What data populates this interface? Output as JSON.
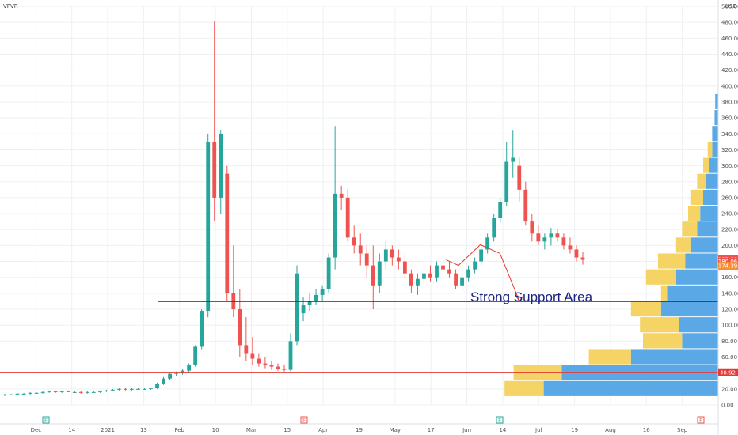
{
  "chart_data": {
    "type": "candlestick",
    "symbol": "VPVR",
    "currency": "USD",
    "y_range": [
      0,
      500
    ],
    "grid": true,
    "y_ticks": [
      0,
      20,
      40,
      60,
      80,
      100,
      120,
      140,
      160,
      180,
      200,
      220,
      240,
      260,
      280,
      300,
      320,
      340,
      360,
      380,
      400,
      420,
      440,
      460,
      480,
      500
    ],
    "y_tick_labels": [
      "0.00",
      "20.00",
      "40.00",
      "60.00",
      "80.00",
      "100.00",
      "120.00",
      "140.00",
      "160.00",
      "180.00",
      "200.00",
      "220.00",
      "240.00",
      "260.00",
      "280.00",
      "300.00",
      "320.00",
      "340.00",
      "360.00",
      "380.00",
      "400.00",
      "420.00",
      "440.00",
      "460.00",
      "480.00",
      "500.00"
    ],
    "x_ticks": [
      "Dec",
      "14",
      "2021",
      "13",
      "Feb",
      "10",
      "Mar",
      "15",
      "Apr",
      "19",
      "May",
      "17",
      "Jun",
      "14",
      "Jul",
      "19",
      "Aug",
      "16",
      "Sep"
    ],
    "price_labels": [
      {
        "text": "182.88",
        "value": 182.88,
        "color": "#ef5350"
      },
      {
        "text": "180.06",
        "value": 180.06,
        "color": "#ef5350"
      },
      {
        "text": "174.39",
        "value": 174.39,
        "color": "#fd8c2c"
      },
      {
        "text": "40.92",
        "value": 40.92,
        "color": "#e53935"
      }
    ],
    "support_line": {
      "value": 130,
      "label": "Strong Support Area",
      "color": "#1a237e"
    },
    "support_line_2": {
      "value": 40.92,
      "color": "#e53935"
    },
    "projection": {
      "color": "#e53935",
      "points": [
        [
          182,
          182
        ],
        [
          187,
          175
        ],
        [
          196,
          201
        ],
        [
          204,
          190
        ],
        [
          212,
          130
        ]
      ]
    },
    "volume_profile": {
      "buy_color": "#5aa9e6",
      "sell_color": "#f6d365",
      "bins": [
        {
          "low": 10,
          "high": 30,
          "buy": 0.58,
          "sell": 0.13
        },
        {
          "low": 30,
          "high": 50,
          "buy": 0.52,
          "sell": 0.16
        },
        {
          "low": 50,
          "high": 70,
          "buy": 0.29,
          "sell": 0.14
        },
        {
          "low": 70,
          "high": 90,
          "buy": 0.12,
          "sell": 0.13
        },
        {
          "low": 90,
          "high": 110,
          "buy": 0.13,
          "sell": 0.13
        },
        {
          "low": 110,
          "high": 130,
          "buy": 0.19,
          "sell": 0.1
        },
        {
          "low": 130,
          "high": 150,
          "buy": 0.17,
          "sell": 0.02
        },
        {
          "low": 150,
          "high": 170,
          "buy": 0.14,
          "sell": 0.1
        },
        {
          "low": 170,
          "high": 190,
          "buy": 0.11,
          "sell": 0.09
        },
        {
          "low": 190,
          "high": 210,
          "buy": 0.09,
          "sell": 0.05
        },
        {
          "low": 210,
          "high": 230,
          "buy": 0.07,
          "sell": 0.05
        },
        {
          "low": 230,
          "high": 250,
          "buy": 0.06,
          "sell": 0.04
        },
        {
          "low": 250,
          "high": 270,
          "buy": 0.05,
          "sell": 0.04
        },
        {
          "low": 270,
          "high": 290,
          "buy": 0.04,
          "sell": 0.03
        },
        {
          "low": 290,
          "high": 310,
          "buy": 0.03,
          "sell": 0.02
        },
        {
          "low": 310,
          "high": 330,
          "buy": 0.02,
          "sell": 0.015
        },
        {
          "low": 330,
          "high": 350,
          "buy": 0.02,
          "sell": 0.0
        },
        {
          "low": 350,
          "high": 370,
          "buy": 0.012,
          "sell": 0.0
        },
        {
          "low": 370,
          "high": 390,
          "buy": 0.01,
          "sell": 0.0
        }
      ]
    },
    "candles": [
      [
        0,
        12,
        14,
        11,
        13
      ],
      [
        1,
        13,
        14,
        12,
        13
      ],
      [
        2,
        13,
        15,
        12,
        14
      ],
      [
        3,
        14,
        15,
        13,
        14
      ],
      [
        4,
        14,
        16,
        13,
        15
      ],
      [
        5,
        15,
        16,
        14,
        15
      ],
      [
        6,
        15,
        17,
        14,
        16
      ],
      [
        7,
        16,
        18,
        15,
        17
      ],
      [
        8,
        17,
        18,
        15,
        16
      ],
      [
        9,
        16,
        18,
        15,
        17
      ],
      [
        10,
        17,
        18,
        16,
        16
      ],
      [
        11,
        16,
        17,
        15,
        16
      ],
      [
        12,
        16,
        17,
        14,
        15
      ],
      [
        13,
        15,
        17,
        14,
        16
      ],
      [
        14,
        16,
        17,
        15,
        16
      ],
      [
        15,
        16,
        18,
        15,
        17
      ],
      [
        16,
        17,
        19,
        16,
        18
      ],
      [
        17,
        18,
        20,
        17,
        19
      ],
      [
        18,
        19,
        21,
        18,
        20
      ],
      [
        19,
        20,
        21,
        18,
        19
      ],
      [
        20,
        19,
        21,
        18,
        20
      ],
      [
        21,
        20,
        21,
        19,
        20
      ],
      [
        22,
        20,
        21,
        19,
        20
      ],
      [
        23,
        20,
        21,
        19,
        21
      ],
      [
        24,
        21,
        28,
        20,
        26
      ],
      [
        25,
        26,
        35,
        25,
        33
      ],
      [
        26,
        33,
        40,
        31,
        39
      ],
      [
        27,
        39,
        42,
        36,
        40
      ],
      [
        28,
        40,
        45,
        38,
        43
      ],
      [
        29,
        43,
        52,
        41,
        50
      ],
      [
        30,
        50,
        75,
        48,
        73
      ],
      [
        31,
        73,
        120,
        70,
        118
      ],
      [
        32,
        118,
        340,
        110,
        330
      ],
      [
        33,
        330,
        482,
        230,
        260
      ],
      [
        34,
        260,
        345,
        240,
        340
      ],
      [
        35,
        290,
        300,
        130,
        140
      ],
      [
        36,
        140,
        200,
        110,
        120
      ],
      [
        37,
        120,
        145,
        60,
        75
      ],
      [
        38,
        75,
        110,
        55,
        65
      ],
      [
        39,
        65,
        85,
        50,
        58
      ],
      [
        40,
        58,
        65,
        48,
        52
      ],
      [
        41,
        52,
        60,
        46,
        50
      ],
      [
        42,
        50,
        55,
        44,
        48
      ],
      [
        43,
        48,
        52,
        43,
        45
      ],
      [
        44,
        45,
        50,
        42,
        44
      ],
      [
        45,
        44,
        90,
        42,
        80
      ],
      [
        46,
        80,
        175,
        75,
        165
      ],
      [
        47,
        115,
        135,
        105,
        125
      ],
      [
        48,
        125,
        140,
        118,
        130
      ],
      [
        49,
        130,
        145,
        125,
        138
      ],
      [
        50,
        138,
        150,
        130,
        145
      ],
      [
        51,
        145,
        190,
        140,
        185
      ],
      [
        52,
        185,
        350,
        170,
        265
      ],
      [
        53,
        265,
        275,
        245,
        260
      ],
      [
        54,
        260,
        270,
        205,
        210
      ],
      [
        55,
        210,
        225,
        190,
        200
      ],
      [
        56,
        200,
        215,
        175,
        190
      ],
      [
        57,
        190,
        200,
        160,
        175
      ],
      [
        58,
        175,
        200,
        120,
        150
      ],
      [
        59,
        150,
        190,
        140,
        180
      ],
      [
        60,
        180,
        205,
        170,
        195
      ],
      [
        61,
        195,
        200,
        175,
        185
      ],
      [
        62,
        185,
        195,
        170,
        180
      ],
      [
        63,
        180,
        190,
        160,
        165
      ],
      [
        64,
        165,
        170,
        140,
        150
      ],
      [
        65,
        150,
        165,
        138,
        158
      ],
      [
        66,
        158,
        170,
        150,
        165
      ],
      [
        67,
        165,
        175,
        155,
        160
      ],
      [
        68,
        160,
        180,
        155,
        175
      ],
      [
        69,
        175,
        185,
        165,
        170
      ],
      [
        70,
        170,
        180,
        160,
        165
      ],
      [
        71,
        165,
        170,
        145,
        150
      ],
      [
        72,
        150,
        165,
        142,
        160
      ],
      [
        73,
        160,
        175,
        155,
        170
      ],
      [
        74,
        170,
        185,
        165,
        180
      ],
      [
        75,
        180,
        200,
        175,
        195
      ],
      [
        76,
        195,
        215,
        190,
        210
      ],
      [
        77,
        210,
        240,
        205,
        235
      ],
      [
        78,
        235,
        260,
        228,
        255
      ],
      [
        79,
        255,
        330,
        250,
        305
      ],
      [
        80,
        305,
        345,
        285,
        310
      ],
      [
        81,
        300,
        310,
        255,
        270
      ],
      [
        82,
        270,
        280,
        225,
        230
      ],
      [
        83,
        230,
        240,
        205,
        215
      ],
      [
        84,
        215,
        225,
        200,
        205
      ],
      [
        85,
        205,
        215,
        195,
        210
      ],
      [
        86,
        210,
        222,
        200,
        215
      ],
      [
        87,
        215,
        220,
        205,
        210
      ],
      [
        88,
        210,
        215,
        195,
        200
      ],
      [
        89,
        200,
        210,
        190,
        195
      ],
      [
        90,
        195,
        200,
        180,
        185
      ],
      [
        91,
        185,
        192,
        176,
        182
      ]
    ]
  },
  "chart_annotations": [
    "E",
    "E",
    "E",
    "E"
  ]
}
